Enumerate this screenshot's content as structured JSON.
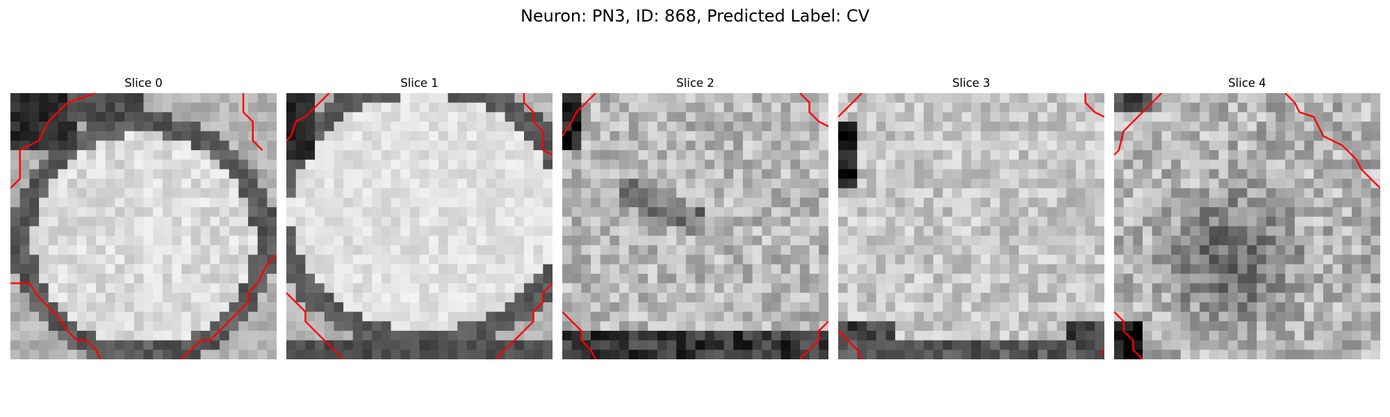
{
  "figure": {
    "title": "Neuron: PN3, ID: 868, Predicted Label: CV"
  },
  "slices": [
    {
      "title": "Slice 0",
      "cell_shape": "round bright cell body with dark membrane ring",
      "contour_color": "#ff0000"
    },
    {
      "title": "Slice 1",
      "cell_shape": "wide bright cell body with dark lower rim",
      "contour_color": "#ff0000"
    },
    {
      "title": "Slice 2",
      "cell_shape": "textured bright cell body, dark bottom edge",
      "contour_color": "#ff0000"
    },
    {
      "title": "Slice 3",
      "cell_shape": "uniform bright region, dark corners",
      "contour_color": "#ff0000"
    },
    {
      "title": "Slice 4",
      "cell_shape": "noisy grey region with darker centre",
      "contour_color": "#ff0000"
    }
  ],
  "colormap": "gray"
}
